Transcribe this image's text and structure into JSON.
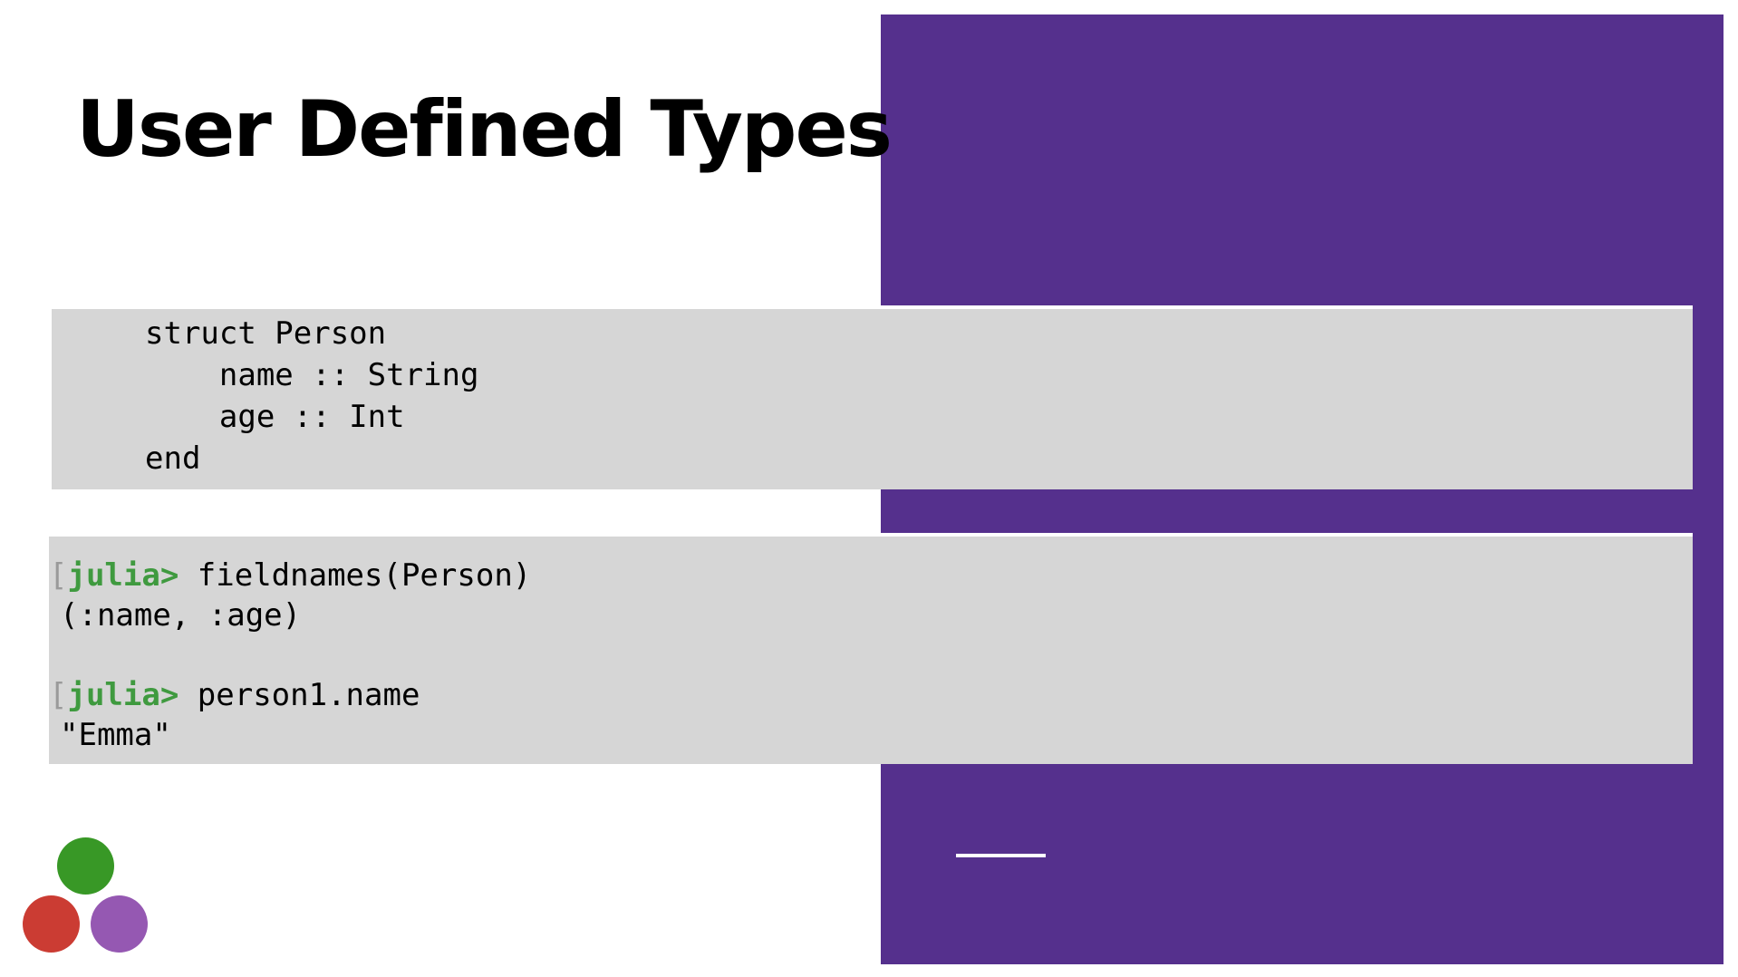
{
  "slide": {
    "title": "User Defined Types"
  },
  "struct_code": {
    "lines": [
      "struct Person",
      "    name :: String",
      "    age :: Int",
      "end"
    ]
  },
  "repl": {
    "prompt": "julia>",
    "bracket": "[",
    "entries": [
      {
        "command": "fieldnames(Person)",
        "output": "(:name, :age)"
      },
      {
        "command": "person1.name",
        "output": "\"Emma\""
      }
    ]
  },
  "colors": {
    "panel": "#55308d",
    "code_background": "#d6d6d6",
    "prompt": "#3f9a3f",
    "logo_green": "#389826",
    "logo_red": "#cb3c33",
    "logo_purple": "#9558b2"
  },
  "logo": {
    "name": "julia-logo-dots"
  }
}
